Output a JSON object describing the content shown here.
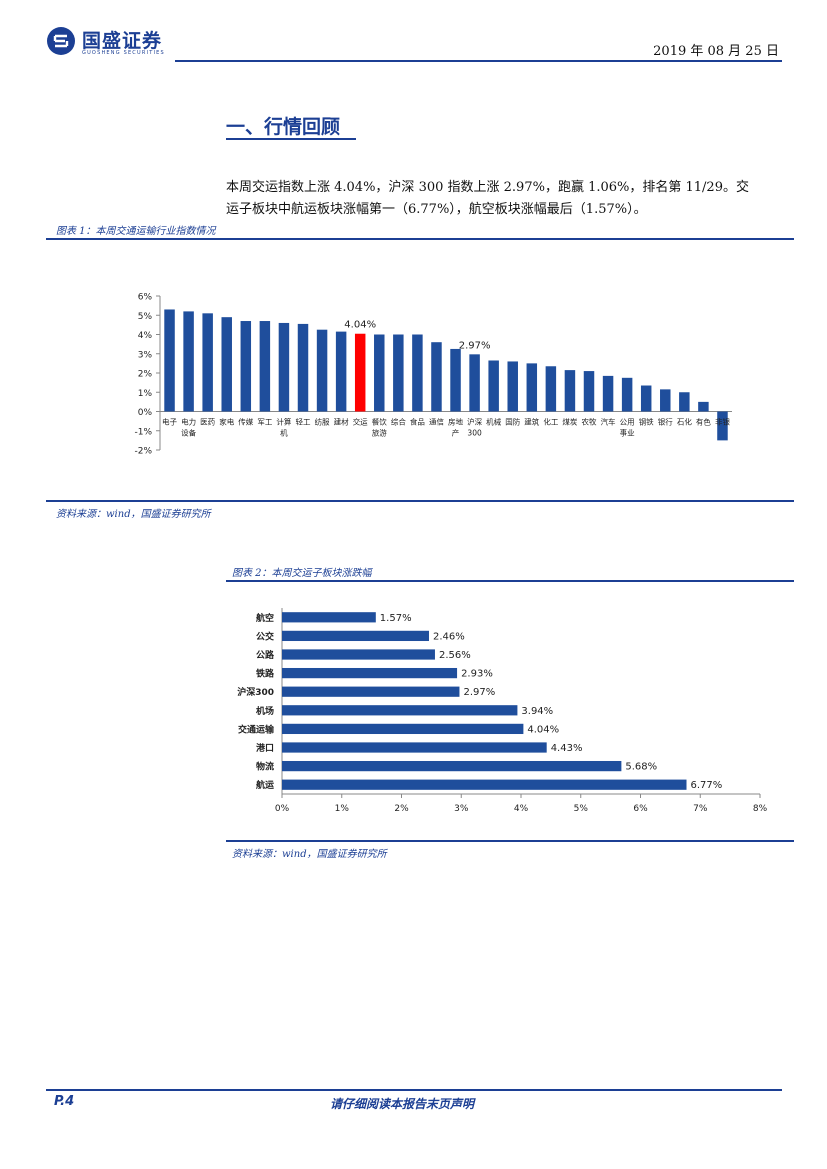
{
  "header": {
    "brand": "国盛证券",
    "brand_sub": "GUOSHENG SECURITIES",
    "date": "2019 年 08 月 25 日"
  },
  "section": {
    "title": "一、行情回顾",
    "paragraph_line1": "本周交运指数上涨 4.04%，沪深 300 指数上涨 2.97%，跑赢 1.06%，排名第 11/29。交",
    "paragraph_line2": "运子板块中航运板块涨幅第一（6.77%），航空板块涨幅最后（1.57%）。"
  },
  "figure1": {
    "caption": "图表 1：本周交通运输行业指数情况",
    "source": "资料来源：wind，国盛证券研究所"
  },
  "figure2": {
    "caption": "图表 2：本周交运子板块涨跌幅",
    "source": "资料来源：wind，国盛证券研究所"
  },
  "footer": {
    "page": "P.4",
    "disclaimer": "请仔细阅读本报告末页声明"
  },
  "colors": {
    "brand": "#1c3f94",
    "bar": "#1f4e9c",
    "highlight": "#ff0000"
  },
  "chart_data": [
    {
      "type": "bar",
      "title": "",
      "categories": [
        "电子",
        "电力设备",
        "医药",
        "家电",
        "传媒",
        "军工",
        "计算机",
        "轻工",
        "纺服",
        "建材",
        "交运",
        "餐饮旅游",
        "综合",
        "食品",
        "通信",
        "房地产",
        "沪深300",
        "机械",
        "国防",
        "建筑",
        "化工",
        "煤炭",
        "农牧",
        "汽车",
        "公用事业",
        "钢铁",
        "银行",
        "石化",
        "有色",
        "非银"
      ],
      "category_lines": [
        [
          "电子"
        ],
        [
          "电力",
          "设备"
        ],
        [
          "医药"
        ],
        [
          "家电"
        ],
        [
          "传媒"
        ],
        [
          "军工"
        ],
        [
          "计算",
          "机"
        ],
        [
          "轻工"
        ],
        [
          "纺服"
        ],
        [
          "建材"
        ],
        [
          "交运"
        ],
        [
          "餐饮",
          "旅游"
        ],
        [
          "综合"
        ],
        [
          "食品"
        ],
        [
          "通信"
        ],
        [
          "房地",
          "产"
        ],
        [
          "沪深",
          "300"
        ],
        [
          "机械"
        ],
        [
          "国防"
        ],
        [
          "建筑"
        ],
        [
          "化工"
        ],
        [
          "煤炭"
        ],
        [
          "农牧"
        ],
        [
          "汽车"
        ],
        [
          "公用",
          "事业"
        ],
        [
          "钢铁"
        ],
        [
          "银行"
        ],
        [
          "石化"
        ],
        [
          "有色"
        ],
        [
          "非银"
        ]
      ],
      "values": [
        5.3,
        5.2,
        5.1,
        4.9,
        4.7,
        4.7,
        4.6,
        4.55,
        4.25,
        4.15,
        4.04,
        4.0,
        4.0,
        4.0,
        3.6,
        3.25,
        2.97,
        2.65,
        2.6,
        2.5,
        2.35,
        2.15,
        2.1,
        1.85,
        1.75,
        1.35,
        1.15,
        1.0,
        0.5,
        -1.5
      ],
      "highlight_index": 10,
      "annotations": [
        {
          "index": 10,
          "text": "4.04%"
        },
        {
          "index": 16,
          "text": "2.97%"
        }
      ],
      "ylim": [
        -2,
        6
      ],
      "yticks": [
        "-2%",
        "-1%",
        "0%",
        "1%",
        "2%",
        "3%",
        "4%",
        "5%",
        "6%"
      ],
      "grid": false,
      "legend": "none"
    },
    {
      "type": "bar",
      "orientation": "horizontal",
      "title": "",
      "categories": [
        "航空",
        "公交",
        "公路",
        "铁路",
        "沪深300",
        "机场",
        "交通运输",
        "港口",
        "物流",
        "航运"
      ],
      "values": [
        1.57,
        2.46,
        2.56,
        2.93,
        2.97,
        3.94,
        4.04,
        4.43,
        5.68,
        6.77
      ],
      "value_labels": [
        "1.57%",
        "2.46%",
        "2.56%",
        "2.93%",
        "2.97%",
        "3.94%",
        "4.04%",
        "4.43%",
        "5.68%",
        "6.77%"
      ],
      "xlim": [
        0,
        8
      ],
      "xticks": [
        "0%",
        "1%",
        "2%",
        "3%",
        "4%",
        "5%",
        "6%",
        "7%",
        "8%"
      ],
      "grid": false,
      "legend": "none"
    }
  ]
}
